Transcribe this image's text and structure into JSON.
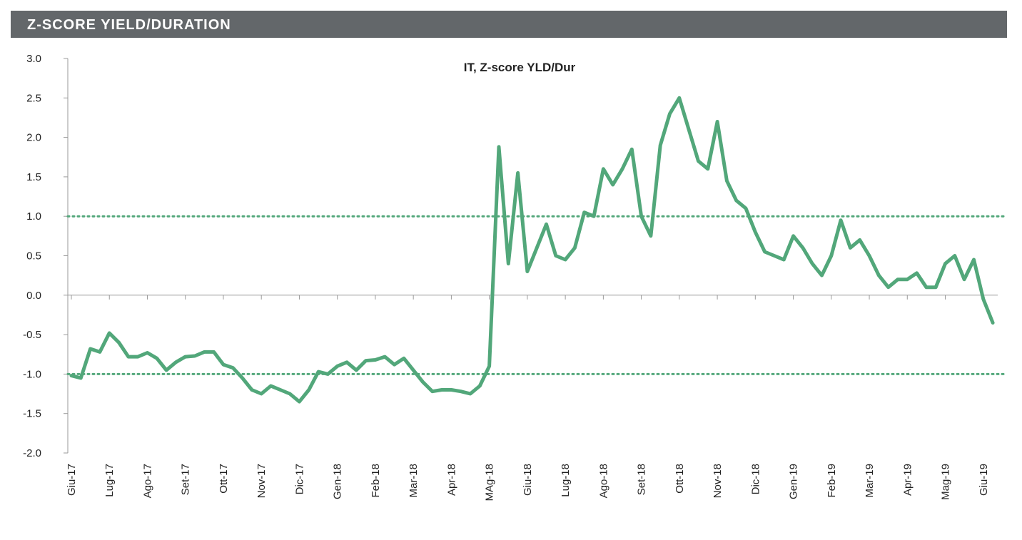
{
  "header": "Z-SCORE YIELD/DURATION",
  "chart_data": {
    "type": "line",
    "title": "IT, Z-score YLD/Dur",
    "categories": [
      "Giu-17",
      null,
      null,
      null,
      "Lug-17",
      null,
      null,
      null,
      "Ago-17",
      null,
      null,
      null,
      "Set-17",
      null,
      null,
      null,
      "Ott-17",
      null,
      null,
      null,
      "Nov-17",
      null,
      null,
      null,
      "Dic-17",
      null,
      null,
      null,
      "Gen-18",
      null,
      null,
      null,
      "Feb-18",
      null,
      null,
      null,
      "Mar-18",
      null,
      null,
      null,
      "Apr-18",
      null,
      null,
      null,
      "MAg-18",
      null,
      null,
      null,
      "Giu-18",
      null,
      null,
      null,
      "Lug-18",
      null,
      null,
      null,
      "Ago-18",
      null,
      null,
      null,
      "Set-18",
      null,
      null,
      null,
      "Ott-18",
      null,
      null,
      null,
      "Nov-18",
      null,
      null,
      null,
      "Dic-18",
      null,
      null,
      null,
      "Gen-19",
      null,
      null,
      null,
      "Feb-19",
      null,
      null,
      null,
      "Mar-19",
      null,
      null,
      null,
      "Apr-19",
      null,
      null,
      null,
      "Mag-19",
      null,
      null,
      null,
      "Giu-19",
      null
    ],
    "series": [
      {
        "name": "IT, Z-score YLD/Dur",
        "color": "#52a77a",
        "values": [
          -1.02,
          -1.05,
          -0.68,
          -0.72,
          -0.48,
          -0.6,
          -0.78,
          -0.78,
          -0.73,
          -0.8,
          -0.95,
          -0.85,
          -0.78,
          -0.77,
          -0.72,
          -0.72,
          -0.88,
          -0.92,
          -1.05,
          -1.2,
          -1.25,
          -1.15,
          -1.2,
          -1.25,
          -1.35,
          -1.2,
          -0.97,
          -1.0,
          -0.9,
          -0.85,
          -0.95,
          -0.83,
          -0.82,
          -0.78,
          -0.88,
          -0.8,
          -0.95,
          -1.1,
          -1.22,
          -1.2,
          -1.2,
          -1.22,
          -1.25,
          -1.15,
          -0.9,
          1.88,
          0.4,
          1.55,
          0.3,
          0.6,
          0.9,
          0.5,
          0.45,
          0.6,
          1.05,
          1.0,
          1.6,
          1.4,
          1.6,
          1.85,
          1.0,
          0.75,
          1.9,
          2.3,
          2.5,
          2.1,
          1.7,
          1.6,
          2.2,
          1.45,
          1.2,
          1.1,
          0.8,
          0.55,
          0.5,
          0.45,
          0.75,
          0.6,
          0.4,
          0.25,
          0.5,
          0.95,
          0.6,
          0.7,
          0.5,
          0.25,
          0.1,
          0.2,
          0.2,
          0.28,
          0.1,
          0.1,
          0.4,
          0.5,
          0.2,
          0.45,
          -0.05,
          -0.35
        ]
      }
    ],
    "ylim": [
      -2,
      3
    ],
    "yticks": [
      {
        "value": -2,
        "label": "-2.0"
      },
      -1.5,
      {
        "value": -1,
        "label": "-1.0"
      },
      -0.5,
      {
        "value": 0,
        "label": "0.0"
      },
      0.5,
      {
        "value": 1,
        "label": "1.0"
      },
      1.5,
      {
        "value": 2,
        "label": "2.0"
      },
      2.5,
      {
        "value": 3,
        "label": "3.0"
      }
    ],
    "reference_lines": [
      1,
      -1
    ],
    "grid": false
  }
}
